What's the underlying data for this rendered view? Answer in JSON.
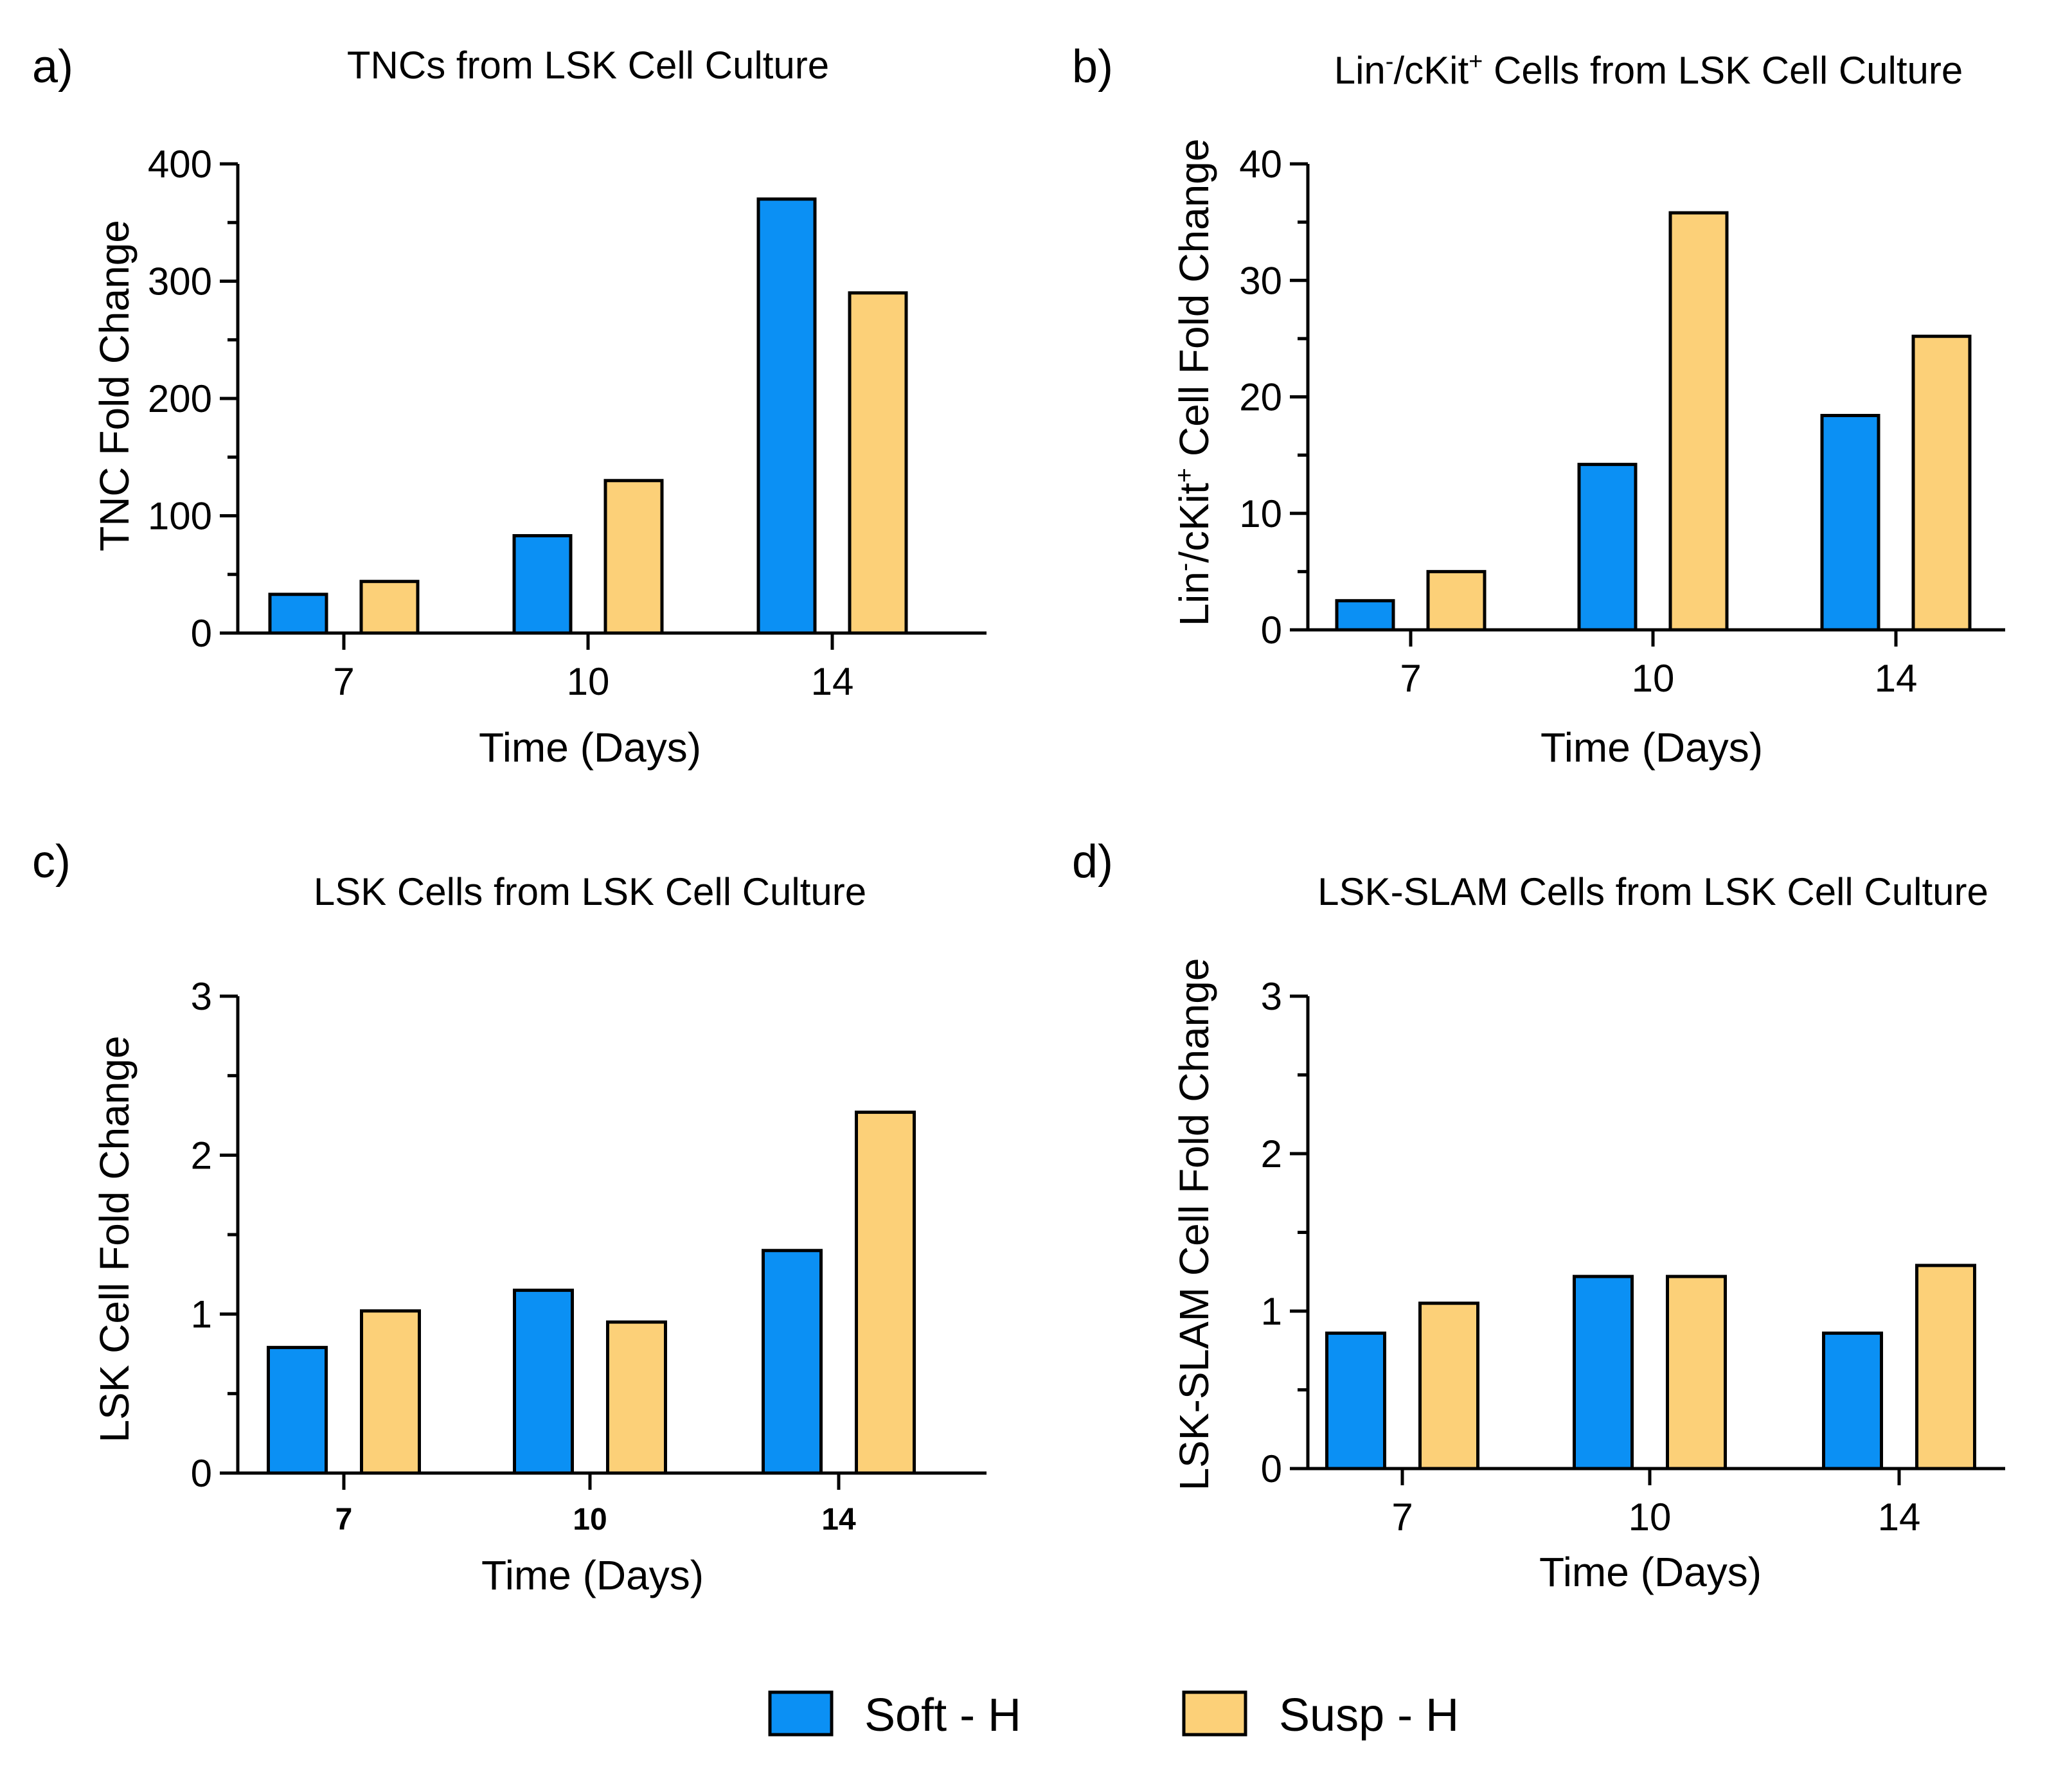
{
  "colors": {
    "soft": "#0b90f4",
    "susp": "#fcd078"
  },
  "legend": [
    {
      "name": "Soft - H",
      "color": "#0b90f4"
    },
    {
      "name": "Susp - H",
      "color": "#fcd078"
    }
  ],
  "chart_data": [
    {
      "type": "bar",
      "panel": "a)",
      "title": "TNCs from LSK Cell Culture",
      "xlabel": "Time (Days)",
      "ylabel": "TNC Fold Change",
      "categories": [
        "7",
        "10",
        "14"
      ],
      "ylim": [
        0,
        400
      ],
      "yticks": [
        "0",
        "100",
        "200",
        "300",
        "400"
      ],
      "series": [
        {
          "name": "Soft - H",
          "values": [
            33,
            83,
            370
          ]
        },
        {
          "name": "Susp - H",
          "values": [
            44,
            130,
            290
          ]
        }
      ]
    },
    {
      "type": "bar",
      "panel": "b)",
      "title_parts": [
        "Lin",
        "-",
        "/cKit",
        "+",
        " Cells from LSK Cell Culture"
      ],
      "xlabel": "Time (Days)",
      "ylabel_parts": [
        "Lin",
        "-",
        "/cKit",
        "+",
        " Cell Fold Change"
      ],
      "categories": [
        "7",
        "10",
        "14"
      ],
      "ylim": [
        0,
        40
      ],
      "yticks": [
        "0",
        "10",
        "20",
        "30",
        "40"
      ],
      "series": [
        {
          "name": "Soft - H",
          "values": [
            2.5,
            14.2,
            18.4
          ]
        },
        {
          "name": "Susp - H",
          "values": [
            5.0,
            35.8,
            25.2
          ]
        }
      ]
    },
    {
      "type": "bar",
      "panel": "c)",
      "title": "LSK Cells from LSK Cell Culture",
      "xlabel": "Time (Days)",
      "ylabel": "LSK Cell Fold Change",
      "categories": [
        "7",
        "10",
        "14"
      ],
      "bold_categories": true,
      "ylim": [
        0,
        3
      ],
      "yticks": [
        "0",
        "1",
        "2",
        "3"
      ],
      "series": [
        {
          "name": "Soft - H",
          "values": [
            0.79,
            1.15,
            1.4
          ]
        },
        {
          "name": "Susp - H",
          "values": [
            1.02,
            0.95,
            2.27
          ]
        }
      ]
    },
    {
      "type": "bar",
      "panel": "d)",
      "title": "LSK-SLAM Cells from LSK Cell Culture",
      "xlabel": "Time (Days)",
      "ylabel": "LSK-SLAM Cell Fold Change",
      "categories": [
        "7",
        "10",
        "14"
      ],
      "ylim": [
        0,
        3
      ],
      "yticks": [
        "0",
        "1",
        "2",
        "3"
      ],
      "series": [
        {
          "name": "Soft - H",
          "values": [
            0.86,
            1.22,
            0.86
          ]
        },
        {
          "name": "Susp - H",
          "values": [
            1.05,
            1.22,
            1.29
          ]
        }
      ]
    }
  ]
}
